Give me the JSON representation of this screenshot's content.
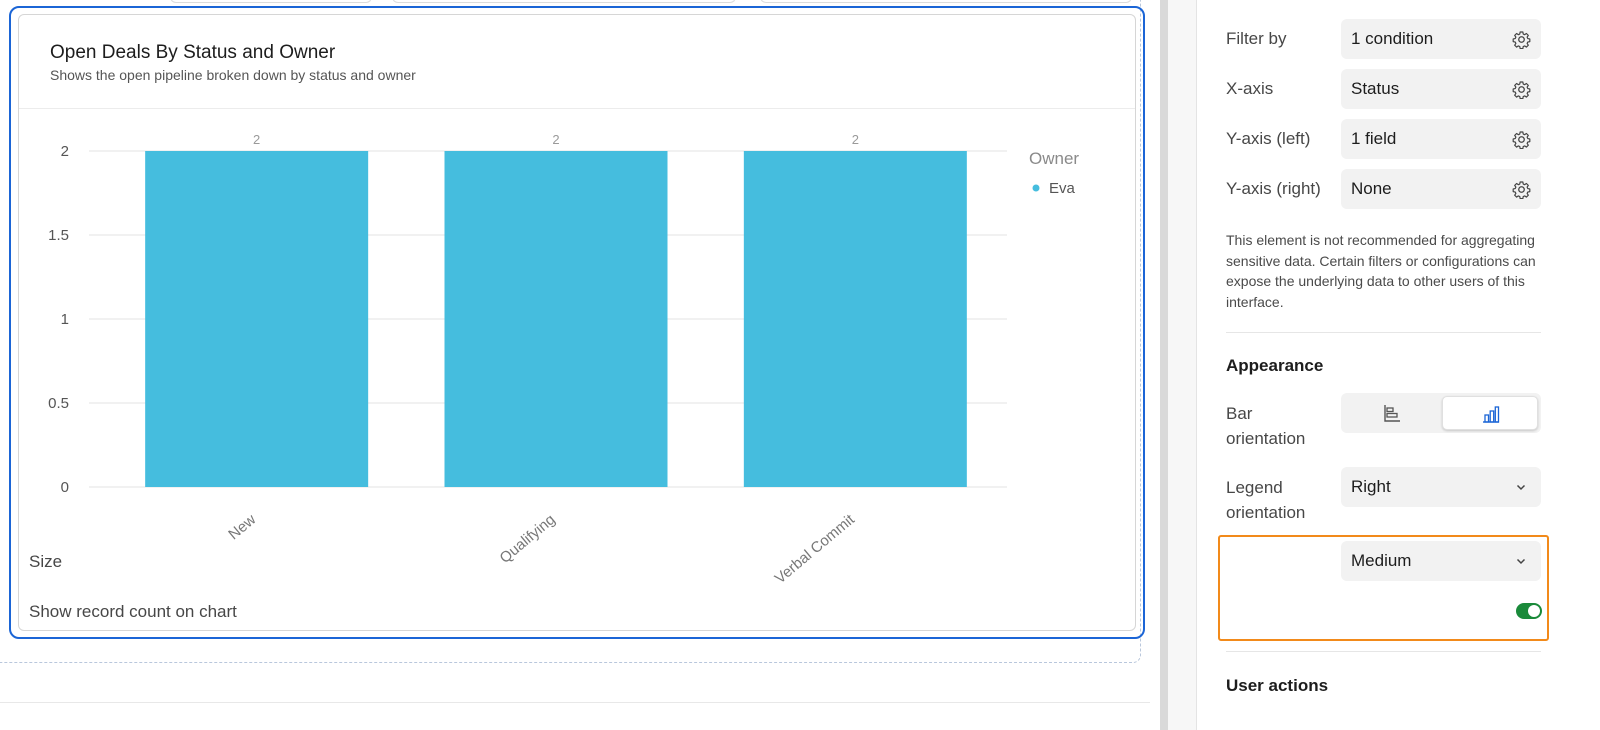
{
  "chart_data": {
    "type": "bar",
    "title": "Open Deals By Status and Owner",
    "subtitle": "Shows the open pipeline broken down by status and owner",
    "categories": [
      "New",
      "Qualifying",
      "Verbal Commit"
    ],
    "series": [
      {
        "name": "Eva",
        "values": [
          2,
          2,
          2
        ],
        "color": "#45bdde"
      }
    ],
    "data_labels": [
      "2",
      "2",
      "2"
    ],
    "yticks": [
      "0",
      "0.5",
      "1",
      "1.5",
      "2"
    ],
    "ylim": [
      0,
      2
    ],
    "legend_title": "Owner",
    "legend_position": "right",
    "grid": true
  },
  "panel": {
    "rows": [
      {
        "label": "Filter by",
        "value": "1 condition",
        "icon": "gear-icon"
      },
      {
        "label": "X-axis",
        "value": "Status",
        "icon": "gear-icon"
      },
      {
        "label": "Y-axis (left)",
        "value": "1 field",
        "icon": "gear-icon"
      },
      {
        "label": "Y-axis (right)",
        "value": "None",
        "icon": "gear-icon"
      }
    ],
    "warning": "This element is not recommended for aggregating sensitive data. Certain filters or configurations can expose the underlying data to other users of this interface.",
    "appearance_heading": "Appearance",
    "bar_orientation": {
      "label_line1": "Bar",
      "label_line2": "orientation",
      "options": [
        "horizontal-bar-icon",
        "vertical-bar-icon"
      ],
      "selected": "vertical"
    },
    "legend_orientation": {
      "label_line1": "Legend",
      "label_line2": "orientation",
      "value": "Right"
    },
    "size": {
      "label": "Size",
      "value": "Medium"
    },
    "record_count": {
      "label": "Show record count on chart",
      "enabled": true
    },
    "user_actions_heading": "User actions",
    "colors": {
      "accent": "#1b65d6",
      "highlight": "#f28a1a",
      "toggle_on": "#1a8a3a"
    }
  }
}
